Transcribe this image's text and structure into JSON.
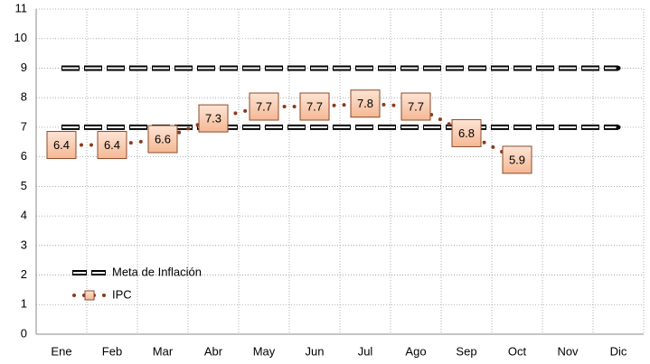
{
  "chart_data": {
    "type": "line",
    "categories": [
      "Ene",
      "Feb",
      "Mar",
      "Abr",
      "May",
      "Jun",
      "Jul",
      "Ago",
      "Sep",
      "Oct",
      "Nov",
      "Dic"
    ],
    "series": [
      {
        "name": "Meta de Inflación",
        "color": "#000000",
        "values": [
          9,
          9,
          9,
          9,
          9,
          9,
          9,
          9,
          9,
          9,
          9,
          9
        ]
      },
      {
        "color": "#000000",
        "values": [
          7,
          7,
          7,
          7,
          7,
          7,
          7,
          7,
          7,
          7,
          7,
          7
        ]
      },
      {
        "name": "IPC",
        "color": "#8b3a1a",
        "values": [
          6.4,
          6.4,
          6.6,
          7.3,
          7.7,
          7.7,
          7.8,
          7.7,
          6.8,
          5.9,
          null,
          null
        ]
      }
    ],
    "ylim": [
      0,
      11
    ],
    "yticks": [
      0,
      1,
      2,
      3,
      4,
      5,
      6,
      7,
      8,
      9,
      10,
      11
    ],
    "grid": true,
    "legend": "lower left"
  }
}
